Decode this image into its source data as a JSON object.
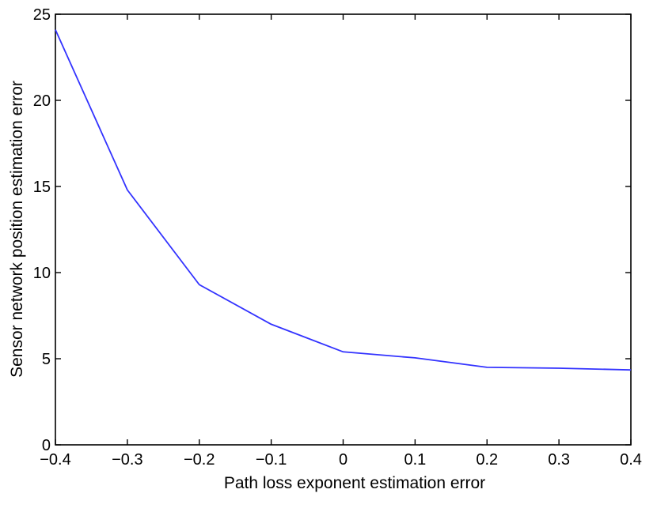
{
  "chart_data": {
    "type": "line",
    "title": "",
    "xlabel": "Path loss exponent estimation error",
    "ylabel": "Sensor network position estimation error",
    "xlim": [
      -0.4,
      0.4
    ],
    "ylim": [
      0,
      25
    ],
    "xticks": [
      -0.4,
      -0.3,
      -0.2,
      -0.1,
      0,
      0.1,
      0.2,
      0.3,
      0.4
    ],
    "xtick_labels": [
      "−0.4",
      "−0.3",
      "−0.2",
      "−0.1",
      "0",
      "0.1",
      "0.2",
      "0.3",
      "0.4"
    ],
    "yticks": [
      0,
      5,
      10,
      15,
      20,
      25
    ],
    "ytick_labels": [
      "0",
      "5",
      "10",
      "15",
      "20",
      "25"
    ],
    "grid": false,
    "legend": "none",
    "series": [
      {
        "color": "#3333ff",
        "x": [
          -0.4,
          -0.3,
          -0.2,
          -0.1,
          0,
          0.1,
          0.2,
          0.3,
          0.4
        ],
        "y": [
          24.1,
          14.8,
          9.3,
          7.0,
          5.4,
          5.05,
          4.5,
          4.45,
          4.35
        ]
      }
    ]
  }
}
